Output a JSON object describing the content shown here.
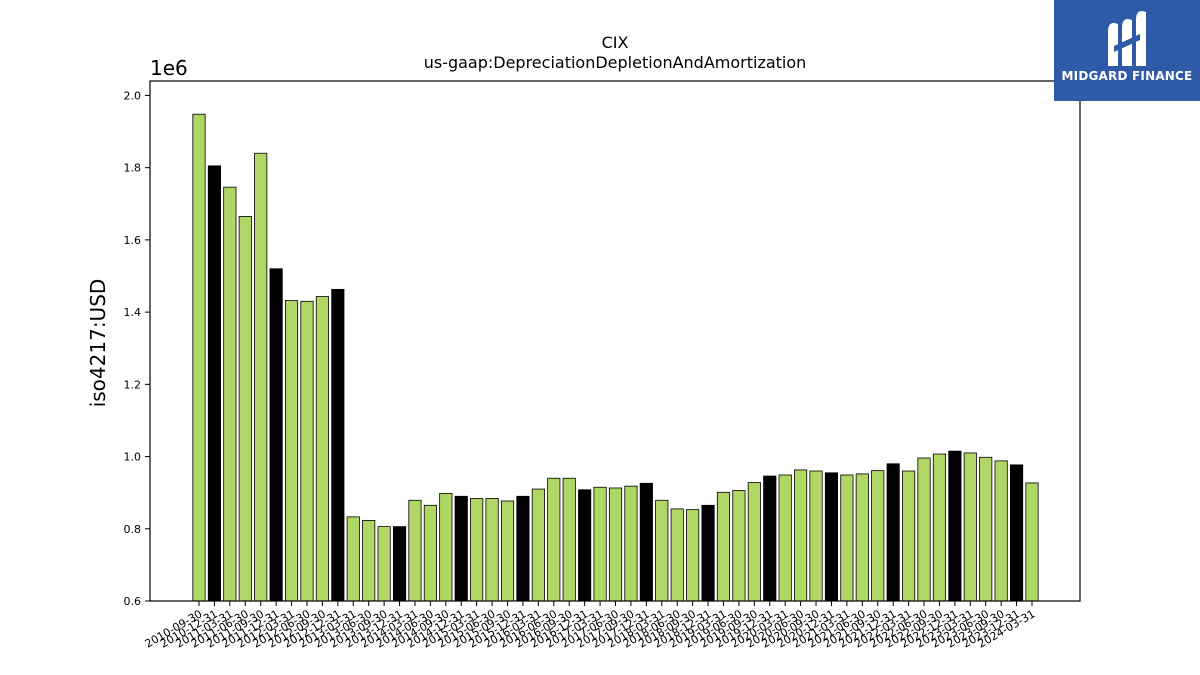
{
  "chart_data": {
    "type": "bar",
    "title": "CIX",
    "subtitle": "us-gaap:DepreciationDepletionAndAmortization",
    "xlabel": "",
    "ylabel": "iso4217:USD",
    "scale_label": "1e6",
    "ylim": [
      0.6,
      2.04
    ],
    "yticks": [
      "0.6",
      "0.8",
      "1.0",
      "1.2",
      "1.4",
      "1.6",
      "1.8",
      "2.0"
    ],
    "ytick_values": [
      0.6,
      0.8,
      1.0,
      1.2,
      1.4,
      1.6,
      1.8,
      2.0
    ],
    "grid": false,
    "colors": {
      "annual": "#000000",
      "quarterly": "#b0d765",
      "edge": "#000000"
    },
    "categories": [
      "2010-09-30",
      "2010-12-31",
      "2011-03-31",
      "2011-06-30",
      "2011-09-30",
      "2011-12-31",
      "2012-03-31",
      "2012-06-30",
      "2012-09-30",
      "2012-12-31",
      "2013-03-31",
      "2013-06-30",
      "2013-09-30",
      "2013-12-31",
      "2014-03-31",
      "2014-06-30",
      "2014-09-30",
      "2014-12-31",
      "2015-03-31",
      "2015-06-30",
      "2015-09-30",
      "2015-12-31",
      "2016-03-31",
      "2016-06-30",
      "2016-09-30",
      "2016-12-31",
      "2017-03-31",
      "2017-06-30",
      "2017-09-30",
      "2017-12-31",
      "2018-03-31",
      "2018-06-30",
      "2018-09-30",
      "2018-12-31",
      "2019-03-31",
      "2019-06-30",
      "2019-09-30",
      "2019-12-31",
      "2020-03-31",
      "2020-06-30",
      "2020-09-30",
      "2020-12-31",
      "2021-03-31",
      "2021-06-30",
      "2021-09-30",
      "2021-12-31",
      "2022-03-31",
      "2022-06-30",
      "2022-09-30",
      "2022-12-31",
      "2023-03-31",
      "2023-06-30",
      "2023-09-30",
      "2023-12-31",
      "2024-03-31"
    ],
    "values": [
      1.948,
      1.805,
      1.746,
      1.665,
      1.84,
      1.52,
      1.432,
      1.43,
      1.443,
      1.463,
      0.833,
      0.823,
      0.806,
      0.806,
      0.879,
      0.865,
      0.898,
      0.89,
      0.884,
      0.884,
      0.877,
      0.89,
      0.91,
      0.94,
      0.94,
      0.908,
      0.915,
      0.913,
      0.918,
      0.926,
      0.879,
      0.855,
      0.853,
      0.865,
      0.901,
      0.906,
      0.928,
      0.946,
      0.949,
      0.963,
      0.96,
      0.955,
      0.949,
      0.952,
      0.961,
      0.98,
      0.96,
      0.996,
      1.007,
      1.015,
      1.01,
      0.998,
      0.988,
      0.977,
      0.927
    ],
    "annual_flags": [
      false,
      true,
      false,
      false,
      false,
      true,
      false,
      false,
      false,
      true,
      false,
      false,
      false,
      true,
      false,
      false,
      false,
      true,
      false,
      false,
      false,
      true,
      false,
      false,
      false,
      true,
      false,
      false,
      false,
      true,
      false,
      false,
      false,
      true,
      false,
      false,
      false,
      true,
      false,
      false,
      false,
      true,
      false,
      false,
      false,
      true,
      false,
      false,
      false,
      true,
      false,
      false,
      false,
      true,
      false
    ]
  },
  "logo": {
    "text": "MIDGARD FINANCE"
  }
}
